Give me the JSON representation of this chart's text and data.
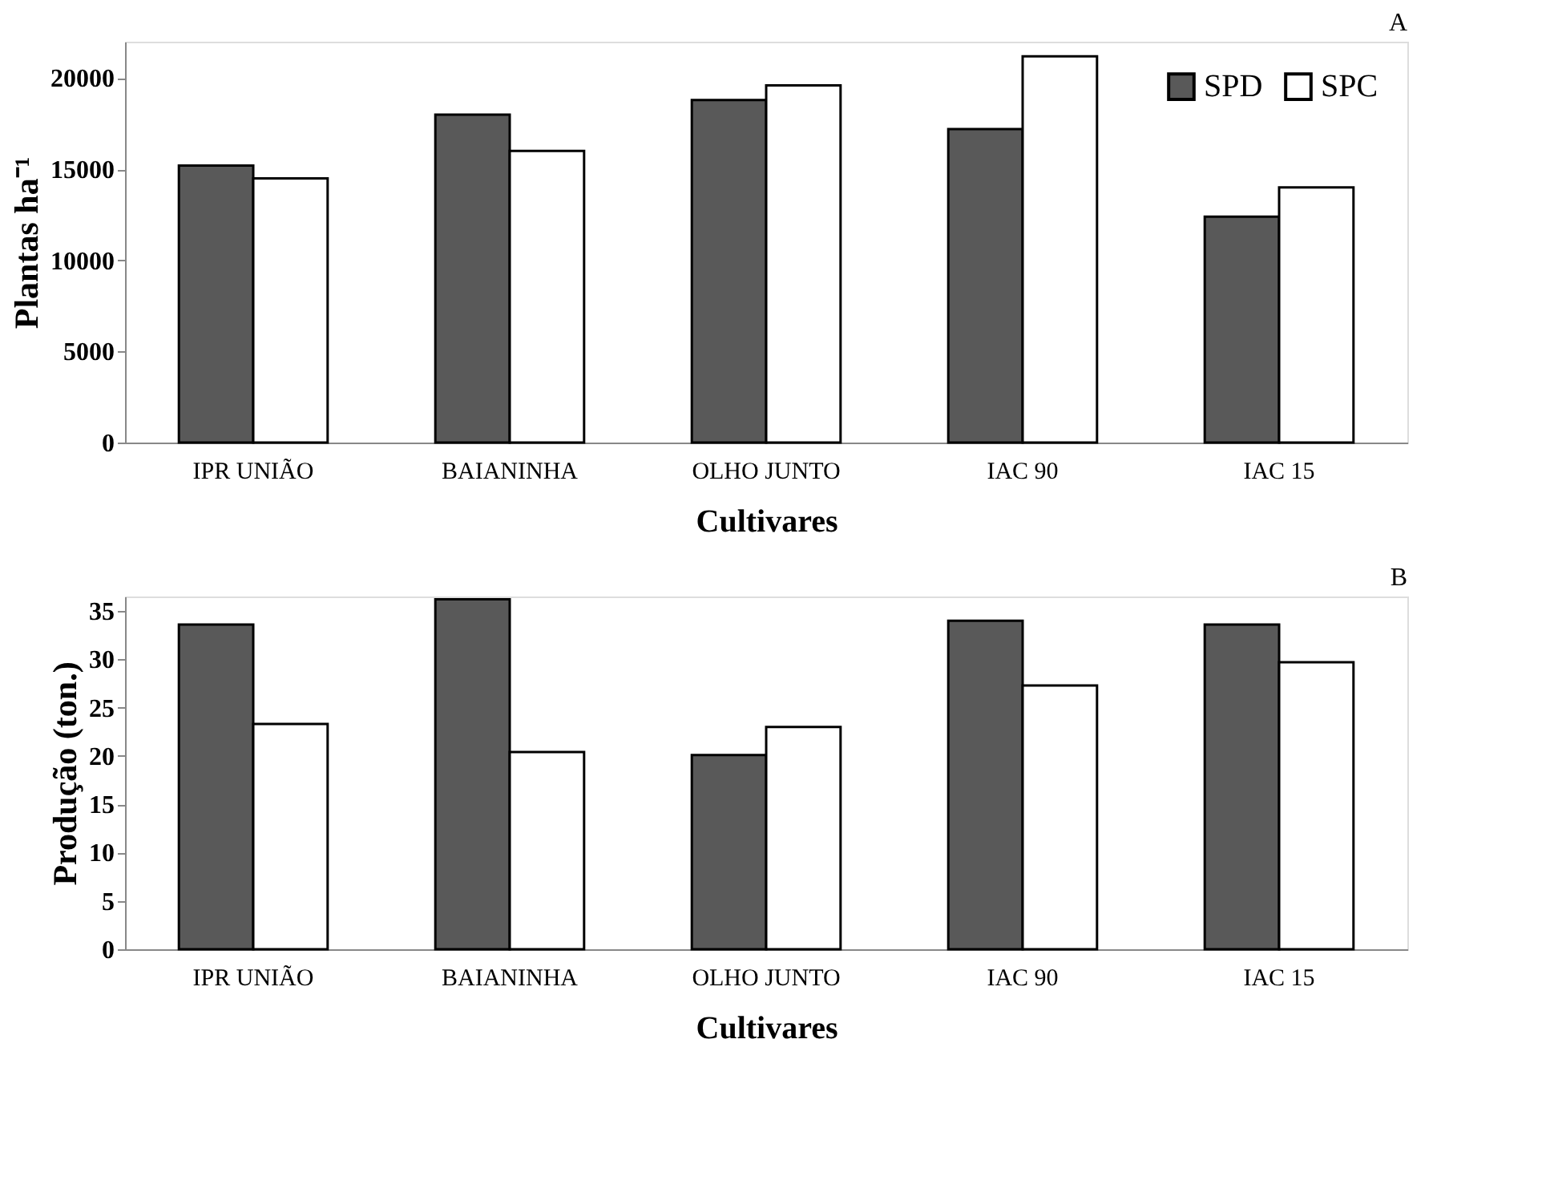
{
  "chart_data": [
    {
      "type": "bar",
      "title": "A",
      "xlabel": "Cultivares",
      "ylabel": "Plantas ha⁻¹",
      "categories": [
        "IPR UNIÃO",
        "BAIANINHA",
        "OLHO JUNTO",
        "IAC 90",
        "IAC 15"
      ],
      "series": [
        {
          "name": "SPD",
          "color": "#595959",
          "values": [
            15200,
            18000,
            18800,
            17200,
            12400
          ]
        },
        {
          "name": "SPC",
          "color": "#ffffff",
          "values": [
            14500,
            16000,
            19600,
            21200,
            14000
          ]
        }
      ],
      "ylim": [
        0,
        22000
      ],
      "yticks": [
        0,
        5000,
        10000,
        15000,
        20000
      ],
      "grid": false,
      "legend": "top right"
    },
    {
      "type": "bar",
      "title": "B",
      "xlabel": "Cultivares",
      "ylabel": "Produção (ton.)",
      "categories": [
        "IPR UNIÃO",
        "BAIANINHA",
        "OLHO JUNTO",
        "IAC 90",
        "IAC 15"
      ],
      "series": [
        {
          "color": "#595959",
          "values": [
            33.6,
            36.2,
            20.1,
            34.0,
            33.6
          ]
        },
        {
          "color": "#ffffff",
          "values": [
            23.3,
            20.4,
            23.0,
            27.3,
            29.7
          ]
        }
      ],
      "ylim": [
        0,
        36.5
      ],
      "yticks": [
        0,
        5,
        10,
        15,
        20,
        25,
        30,
        35
      ],
      "grid": false,
      "legend": false
    }
  ]
}
